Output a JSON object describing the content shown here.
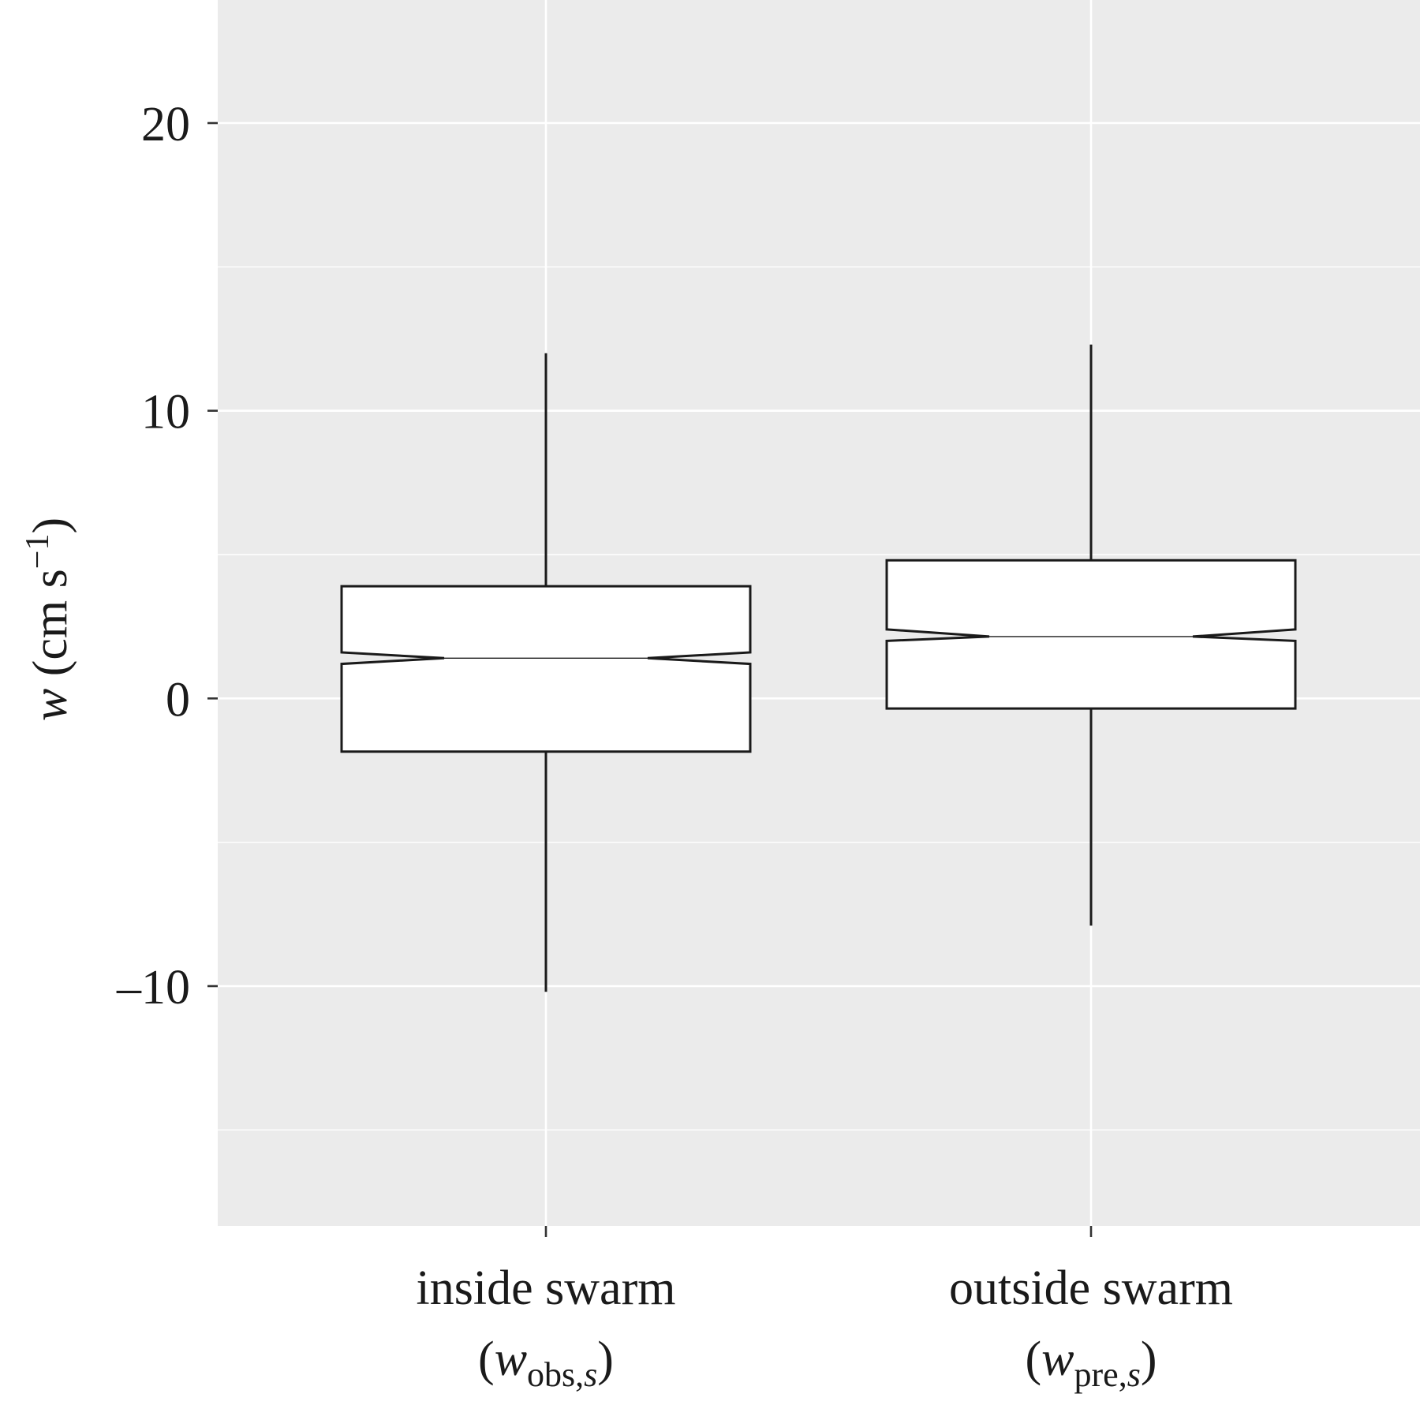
{
  "chart_data": {
    "type": "box",
    "notched": true,
    "ylabel": {
      "var": "w",
      "units_open": " (cm s",
      "units_sup": "−1",
      "units_close": ")"
    },
    "ylim": [
      -18.5,
      24.3
    ],
    "y_ticks": [
      {
        "value": 20,
        "label": "20"
      },
      {
        "value": 10,
        "label": "10"
      },
      {
        "value": 0,
        "label": "0"
      },
      {
        "value": -10,
        "label": "–10"
      }
    ],
    "y_minor_gridlines": [
      15,
      5,
      -5,
      -15
    ],
    "grid": true,
    "categories": [
      {
        "line1": "inside swarm",
        "line2": {
          "open": "(",
          "var": "w",
          "sub_main": "obs,",
          "sub_italic": "s",
          "close": ")"
        }
      },
      {
        "line1": "outside swarm",
        "line2": {
          "open": "(",
          "var": "w",
          "sub_main": "pre,",
          "sub_italic": "s",
          "close": ")"
        }
      }
    ],
    "boxes": [
      {
        "whisker_low": -10.2,
        "q1": -1.85,
        "notch_low": 1.2,
        "median": 1.4,
        "notch_high": 1.6,
        "q3": 3.9,
        "whisker_high": 12.0
      },
      {
        "whisker_low": -7.9,
        "q1": -0.35,
        "notch_low": 2.0,
        "median": 2.15,
        "notch_high": 2.4,
        "q3": 4.8,
        "whisker_high": 12.3
      }
    ]
  }
}
